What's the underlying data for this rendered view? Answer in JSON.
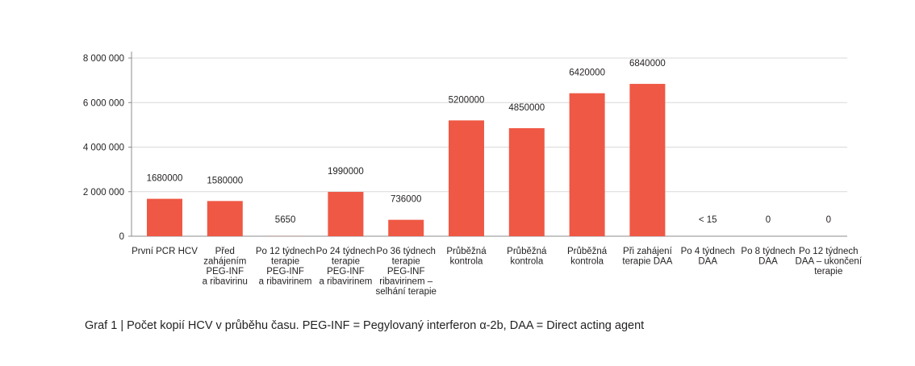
{
  "chart_data": {
    "type": "bar",
    "categories": [
      [
        "První PCR HCV"
      ],
      [
        "Před",
        "zahájením",
        "PEG-INF",
        "a ribavirinu"
      ],
      [
        "Po 12 týdnech",
        "terapie",
        "PEG-INF",
        "a ribavirinem"
      ],
      [
        "Po 24 týdnech",
        "terapie",
        "PEG-INF",
        "a ribavirinem"
      ],
      [
        "Po 36 týdnech",
        "terapie",
        "PEG-INF",
        "ribavirinem –",
        "selhání terapie"
      ],
      [
        "Průběžná",
        "kontrola"
      ],
      [
        "Průběžná",
        "kontrola"
      ],
      [
        "Průběžná",
        "kontrola"
      ],
      [
        "Při zahájení",
        "terapie DAA"
      ],
      [
        "Po 4 týdnech",
        "DAA"
      ],
      [
        "Po 8 týdnech",
        "DAA"
      ],
      [
        "Po 12 týdnech",
        "DAA – ukončení",
        "terapie"
      ]
    ],
    "values": [
      1680000,
      1580000,
      5650,
      1990000,
      736000,
      5200000,
      4850000,
      6420000,
      6840000,
      15,
      0,
      0
    ],
    "data_labels": [
      "1680000",
      "1580000",
      "5650",
      "1990000",
      "736000",
      "5200000",
      "4850000",
      "6420000",
      "6840000",
      "< 15",
      "0",
      "0"
    ],
    "bar_color": "#ef5844",
    "ylim": [
      0,
      8000000
    ],
    "yticks": [
      0,
      2000000,
      4000000,
      6000000,
      8000000
    ],
    "ytick_labels": [
      "0",
      "2 000 000",
      "4 000 000",
      "6 000 000",
      "8 000 000"
    ],
    "grid": "horizontal",
    "xlabel": "",
    "ylabel": ""
  },
  "caption": "Graf 1 | Počet kopií HCV v průběhu času. PEG-INF = Pegylovaný interferon α-2b, DAA = Direct acting agent"
}
